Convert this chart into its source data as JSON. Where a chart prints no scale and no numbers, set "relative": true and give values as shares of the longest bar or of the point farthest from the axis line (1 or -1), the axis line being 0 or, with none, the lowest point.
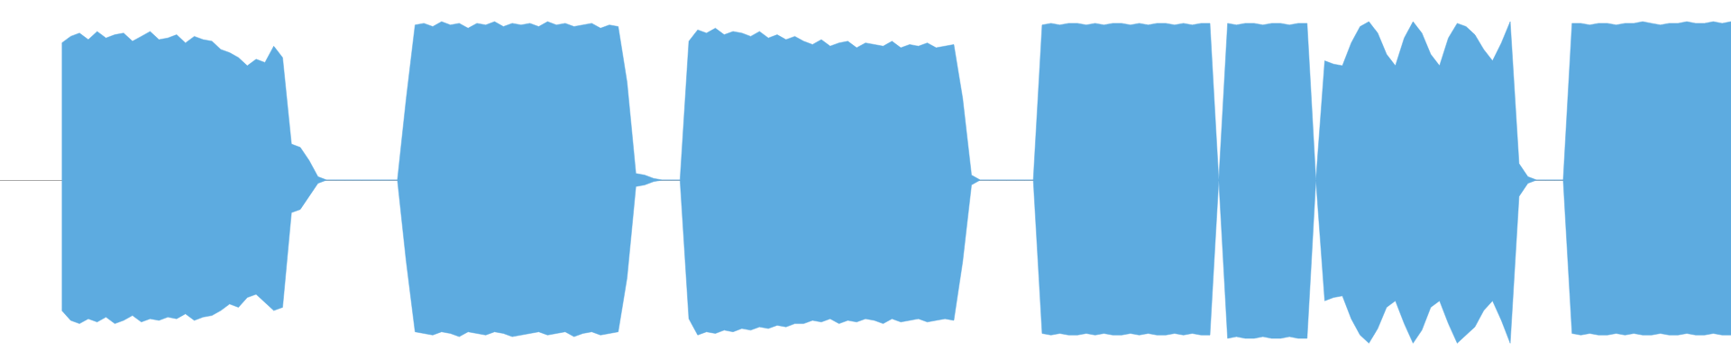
{
  "chart_data": {
    "type": "area",
    "relative": true,
    "categories": [
      null,
      null,
      null,
      null,
      null,
      null,
      null,
      null,
      null,
      null,
      null,
      null,
      null,
      null,
      null,
      null,
      null,
      null,
      null,
      null,
      null,
      null,
      null,
      null,
      null,
      null,
      null,
      null,
      null,
      null,
      null,
      null,
      null,
      null,
      null,
      null,
      null,
      null,
      null,
      null,
      null,
      null,
      null,
      null,
      null,
      null,
      null,
      null,
      null,
      null,
      null,
      null,
      null,
      null,
      null,
      null,
      null,
      null,
      null,
      null,
      null,
      null,
      null,
      null,
      null,
      null,
      null,
      null,
      null,
      null,
      null,
      null,
      null,
      null,
      null,
      null,
      null,
      null,
      null,
      null,
      null,
      null,
      null,
      null,
      null,
      null,
      null,
      null,
      null,
      null,
      null,
      null,
      null,
      null,
      null,
      null,
      null,
      null,
      null,
      null,
      null,
      null,
      null,
      null,
      null,
      null,
      null,
      null,
      null,
      null,
      null,
      null,
      null,
      null,
      null,
      null,
      null,
      null,
      null,
      null,
      null,
      null,
      null,
      null,
      null,
      null,
      null,
      null,
      null,
      null,
      null,
      null,
      null,
      null,
      null,
      null,
      null,
      null,
      null,
      null,
      null,
      null,
      null,
      null,
      null,
      null,
      null,
      null,
      null,
      null,
      null,
      null,
      null,
      null,
      null,
      null,
      null,
      null,
      null,
      null,
      null,
      null,
      null,
      null,
      null,
      null,
      null,
      null,
      null,
      null,
      null,
      null,
      null,
      null,
      null,
      null,
      null,
      null,
      null,
      null,
      null,
      null,
      null,
      null,
      null,
      null,
      null,
      null,
      null,
      null
    ],
    "series": [
      {
        "color": "#5dabe0",
        "values": [
          0.84,
          0.88,
          0.9,
          0.86,
          0.91,
          0.87,
          0.89,
          0.9,
          0.85,
          0.88,
          0.91,
          0.86,
          0.87,
          0.89,
          0.84,
          0.88,
          0.86,
          0.85,
          0.8,
          0.78,
          0.75,
          0.7,
          0.74,
          0.72,
          0.82,
          0.75,
          0.22,
          0.2,
          0.12,
          0.02,
          0,
          0,
          0,
          0,
          0,
          0,
          0,
          0,
          0,
          0.5,
          0.95,
          0.96,
          0.94,
          0.97,
          0.95,
          0.96,
          0.93,
          0.96,
          0.95,
          0.97,
          0.94,
          0.96,
          0.95,
          0.96,
          0.94,
          0.97,
          0.95,
          0.96,
          0.94,
          0.95,
          0.96,
          0.93,
          0.95,
          0.94,
          0.6,
          0.04,
          0.03,
          0.01,
          0,
          0,
          0,
          0.85,
          0.92,
          0.9,
          0.93,
          0.89,
          0.91,
          0.9,
          0.88,
          0.91,
          0.87,
          0.89,
          0.86,
          0.88,
          0.85,
          0.83,
          0.86,
          0.82,
          0.84,
          0.85,
          0.81,
          0.84,
          0.83,
          0.82,
          0.85,
          0.81,
          0.83,
          0.82,
          0.84,
          0.81,
          0.82,
          0.83,
          0.5,
          0.03,
          0,
          0,
          0,
          0,
          0,
          0,
          0,
          0.95,
          0.96,
          0.95,
          0.96,
          0.96,
          0.95,
          0.96,
          0.95,
          0.96,
          0.96,
          0.95,
          0.96,
          0.95,
          0.96,
          0.96,
          0.95,
          0.96,
          0.95,
          0.96,
          0.96,
          0,
          0.96,
          0.95,
          0.96,
          0.96,
          0.95,
          0.96,
          0.96,
          0.95,
          0.96,
          0.96,
          0,
          0.73,
          0.71,
          0.7,
          0.84,
          0.94,
          0.97,
          0.9,
          0.77,
          0.7,
          0.87,
          0.97,
          0.9,
          0.77,
          0.7,
          0.87,
          0.96,
          0.94,
          0.89,
          0.8,
          0.73,
          0.84,
          0.97,
          0.1,
          0.02,
          0,
          0,
          0,
          0,
          0.96,
          0.96,
          0.95,
          0.96,
          0.96,
          0.95,
          0.96,
          0.96,
          0.97,
          0.96,
          0.95,
          0.96,
          0.96,
          0.97,
          0.96,
          0.96,
          0.97,
          0.96,
          0.97
        ]
      },
      {
        "color": "#5dabe0",
        "values": [
          -0.8,
          -0.86,
          -0.88,
          -0.85,
          -0.87,
          -0.84,
          -0.88,
          -0.86,
          -0.83,
          -0.87,
          -0.85,
          -0.86,
          -0.84,
          -0.85,
          -0.82,
          -0.86,
          -0.84,
          -0.83,
          -0.8,
          -0.76,
          -0.78,
          -0.72,
          -0.7,
          -0.75,
          -0.8,
          -0.78,
          -0.2,
          -0.18,
          -0.1,
          -0.02,
          0,
          0,
          0,
          0,
          0,
          0,
          0,
          0,
          0,
          -0.5,
          -0.93,
          -0.94,
          -0.95,
          -0.93,
          -0.94,
          -0.96,
          -0.93,
          -0.94,
          -0.95,
          -0.93,
          -0.94,
          -0.96,
          -0.95,
          -0.94,
          -0.93,
          -0.95,
          -0.94,
          -0.93,
          -0.96,
          -0.94,
          -0.93,
          -0.95,
          -0.94,
          -0.93,
          -0.6,
          -0.04,
          -0.03,
          -0.01,
          0,
          0,
          0,
          -0.85,
          -0.95,
          -0.93,
          -0.94,
          -0.92,
          -0.93,
          -0.91,
          -0.92,
          -0.9,
          -0.91,
          -0.89,
          -0.9,
          -0.88,
          -0.88,
          -0.86,
          -0.87,
          -0.85,
          -0.88,
          -0.86,
          -0.87,
          -0.85,
          -0.86,
          -0.88,
          -0.85,
          -0.87,
          -0.86,
          -0.85,
          -0.87,
          -0.86,
          -0.85,
          -0.86,
          -0.5,
          -0.03,
          0,
          0,
          0,
          0,
          0,
          0,
          0,
          -0.94,
          -0.95,
          -0.94,
          -0.95,
          -0.95,
          -0.94,
          -0.95,
          -0.94,
          -0.95,
          -0.95,
          -0.94,
          -0.95,
          -0.94,
          -0.95,
          -0.95,
          -0.94,
          -0.95,
          -0.94,
          -0.95,
          -0.95,
          0,
          -0.97,
          -0.96,
          -0.97,
          -0.97,
          -0.96,
          -0.97,
          -0.97,
          -0.96,
          -0.97,
          -0.97,
          0,
          -0.74,
          -0.72,
          -0.71,
          -0.85,
          -0.95,
          -1,
          -0.91,
          -0.78,
          -0.74,
          -0.88,
          -1,
          -0.92,
          -0.78,
          -0.74,
          -0.88,
          -1,
          -0.95,
          -0.9,
          -0.8,
          -0.74,
          -0.86,
          -1,
          -0.1,
          -0.02,
          0,
          0,
          0,
          0,
          -0.94,
          -0.95,
          -0.94,
          -0.95,
          -0.95,
          -0.94,
          -0.95,
          -0.94,
          -0.95,
          -0.95,
          -0.94,
          -0.95,
          -0.95,
          -0.94,
          -0.95,
          -0.95,
          -0.94,
          -0.95,
          -0.95
        ]
      }
    ]
  }
}
